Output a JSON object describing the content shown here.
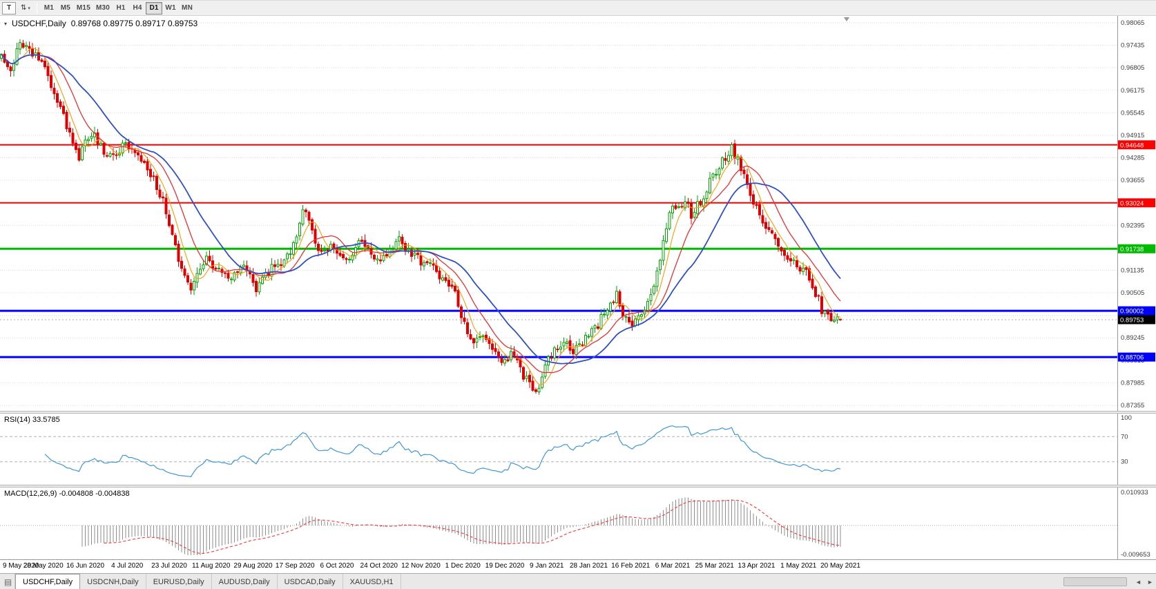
{
  "toolbar": {
    "left_buttons": [
      {
        "label": "T"
      }
    ],
    "icons": {
      "updown_arrows": "⇅",
      "dropdown_caret": "▾",
      "charts_list": "▤",
      "scroll_left": "◄",
      "scroll_right": "►"
    },
    "timeframes": [
      "M1",
      "M5",
      "M15",
      "M30",
      "H1",
      "H4",
      "D1",
      "W1",
      "MN"
    ],
    "active_timeframe": "D1"
  },
  "chart": {
    "collapse_arrow": "▾",
    "symbol_period": "USDCHF,Daily",
    "ohlc_text": "0.89768 0.89775 0.89717 0.89753"
  },
  "chart_data": {
    "type": "candlestick",
    "symbol": "USDCHF",
    "period": "Daily",
    "last_ohlc": {
      "open": 0.89768,
      "high": 0.89775,
      "low": 0.89717,
      "close": 0.89753
    },
    "y_axis": {
      "max": 0.98065,
      "min": 0.87355,
      "ticks": [
        0.98065,
        0.97435,
        0.96805,
        0.96175,
        0.95545,
        0.94915,
        0.94285,
        0.93655,
        0.93025,
        0.92395,
        0.91765,
        0.91135,
        0.90505,
        0.89875,
        0.89245,
        0.88615,
        0.87985,
        0.87355
      ]
    },
    "x_ticks": [
      "9 May 2020",
      "28 May 2020",
      "16 Jun 2020",
      "4 Jul 2020",
      "23 Jul 2020",
      "11 Aug 2020",
      "29 Aug 2020",
      "17 Sep 2020",
      "6 Oct 2020",
      "24 Oct 2020",
      "12 Nov 2020",
      "1 Dec 2020",
      "19 Dec 2020",
      "9 Jan 2021",
      "28 Jan 2021",
      "16 Feb 2021",
      "6 Mar 2021",
      "25 Mar 2021",
      "13 Apr 2021",
      "1 May 2021",
      "20 May 2021"
    ],
    "h_lines": [
      {
        "value": 0.94648,
        "label": "0.94648",
        "color": "#FF0000",
        "width": 2
      },
      {
        "value": 0.93024,
        "label": "0.93024",
        "color": "#FF0000",
        "width": 2
      },
      {
        "value": 0.91738,
        "label": "0.91738",
        "color": "#00BA00",
        "width": 3
      },
      {
        "value": 0.90002,
        "label": "0.90002",
        "color": "#0000FF",
        "width": 3
      },
      {
        "value": 0.88706,
        "label": "0.88706",
        "color": "#0000FF",
        "width": 3
      }
    ],
    "current_price": {
      "value": 0.89753,
      "label": "0.89753"
    },
    "candles_count": 271,
    "close_anchors": [
      [
        0,
        0.971
      ],
      [
        3,
        0.9685
      ],
      [
        6,
        0.9748
      ],
      [
        9,
        0.9722
      ],
      [
        13,
        0.97
      ],
      [
        16,
        0.9638
      ],
      [
        20,
        0.955
      ],
      [
        23,
        0.9462
      ],
      [
        25,
        0.9428
      ],
      [
        27,
        0.9466
      ],
      [
        30,
        0.9492
      ],
      [
        33,
        0.9448
      ],
      [
        36,
        0.9425
      ],
      [
        40,
        0.9468
      ],
      [
        43,
        0.944
      ],
      [
        46,
        0.9412
      ],
      [
        49,
        0.9368
      ],
      [
        52,
        0.9305
      ],
      [
        54,
        0.9245
      ],
      [
        56,
        0.9175
      ],
      [
        58,
        0.9118
      ],
      [
        61,
        0.9062
      ],
      [
        63,
        0.9108
      ],
      [
        66,
        0.9148
      ],
      [
        68,
        0.9122
      ],
      [
        71,
        0.9103
      ],
      [
        74,
        0.9086
      ],
      [
        77,
        0.9128
      ],
      [
        80,
        0.9094
      ],
      [
        82,
        0.9062
      ],
      [
        84,
        0.9088
      ],
      [
        87,
        0.9122
      ],
      [
        90,
        0.9134
      ],
      [
        93,
        0.9162
      ],
      [
        95,
        0.9218
      ],
      [
        97,
        0.9288
      ],
      [
        99,
        0.9252
      ],
      [
        101,
        0.9192
      ],
      [
        103,
        0.916
      ],
      [
        106,
        0.9176
      ],
      [
        108,
        0.9155
      ],
      [
        111,
        0.9146
      ],
      [
        113,
        0.9168
      ],
      [
        116,
        0.9192
      ],
      [
        119,
        0.9152
      ],
      [
        121,
        0.9136
      ],
      [
        124,
        0.9156
      ],
      [
        126,
        0.9182
      ],
      [
        128,
        0.9214
      ],
      [
        130,
        0.9178
      ],
      [
        132,
        0.9154
      ],
      [
        135,
        0.914
      ],
      [
        138,
        0.9124
      ],
      [
        141,
        0.91
      ],
      [
        144,
        0.9078
      ],
      [
        146,
        0.9048
      ],
      [
        148,
        0.8992
      ],
      [
        150,
        0.8936
      ],
      [
        152,
        0.8906
      ],
      [
        155,
        0.8926
      ],
      [
        158,
        0.889
      ],
      [
        160,
        0.8866
      ],
      [
        162,
        0.8852
      ],
      [
        164,
        0.8882
      ],
      [
        166,
        0.8856
      ],
      [
        168,
        0.882
      ],
      [
        170,
        0.8792
      ],
      [
        172,
        0.8768
      ],
      [
        174,
        0.8812
      ],
      [
        176,
        0.8862
      ],
      [
        178,
        0.8896
      ],
      [
        181,
        0.8916
      ],
      [
        184,
        0.8882
      ],
      [
        187,
        0.8912
      ],
      [
        189,
        0.8936
      ],
      [
        192,
        0.8962
      ],
      [
        194,
        0.8992
      ],
      [
        196,
        0.9022
      ],
      [
        198,
        0.9046
      ],
      [
        200,
        0.8996
      ],
      [
        202,
        0.8956
      ],
      [
        205,
        0.8976
      ],
      [
        208,
        0.9032
      ],
      [
        210,
        0.9082
      ],
      [
        212,
        0.9142
      ],
      [
        214,
        0.9226
      ],
      [
        216,
        0.9302
      ],
      [
        218,
        0.9282
      ],
      [
        220,
        0.9312
      ],
      [
        222,
        0.9272
      ],
      [
        224,
        0.9296
      ],
      [
        226,
        0.9322
      ],
      [
        228,
        0.9362
      ],
      [
        230,
        0.9392
      ],
      [
        232,
        0.9422
      ],
      [
        234,
        0.9446
      ],
      [
        235,
        0.9458
      ],
      [
        237,
        0.9422
      ],
      [
        239,
        0.9372
      ],
      [
        241,
        0.9322
      ],
      [
        243,
        0.9282
      ],
      [
        245,
        0.9252
      ],
      [
        247,
        0.9222
      ],
      [
        249,
        0.92
      ],
      [
        251,
        0.9176
      ],
      [
        253,
        0.9156
      ],
      [
        255,
        0.914
      ],
      [
        257,
        0.912
      ],
      [
        259,
        0.9104
      ],
      [
        261,
        0.9076
      ],
      [
        263,
        0.903
      ],
      [
        264,
        0.9002
      ],
      [
        266,
        0.8992
      ],
      [
        268,
        0.8976
      ],
      [
        270,
        0.89753
      ]
    ],
    "colors": {
      "up": "#00A400",
      "down": "#E00000",
      "ma_fast": "#FF9900",
      "ma_mid": "#E83030",
      "ma_slow": "#2E4FC8",
      "rsi_line": "#3E97D4",
      "macd_hist": "#8C8C8C",
      "macd_signal": "#FF3030",
      "grid": "#DBDBDB",
      "axis_text": "#3C3C3C"
    },
    "moving_averages": [
      {
        "period": 6,
        "colorKey": "ma_fast",
        "width": 1.1
      },
      {
        "period": 13,
        "colorKey": "ma_mid",
        "width": 1.3
      },
      {
        "period": 24,
        "colorKey": "ma_slow",
        "width": 1.8
      }
    ],
    "indicators": [
      {
        "name": "RSI",
        "label": "RSI(14) 33.5785",
        "value": 33.5785,
        "period": 14,
        "levels": [
          70,
          30
        ],
        "axis_labels": [
          {
            "text": "100",
            "value": 100
          },
          {
            "text": "70",
            "value": 70
          },
          {
            "text": "30",
            "value": 30
          }
        ],
        "range": [
          0,
          100
        ]
      },
      {
        "name": "MACD",
        "label": "MACD(12,26,9) -0.004808 -0.004838",
        "macd": -0.004808,
        "signal": -0.004838,
        "axis_max": 0.010933,
        "axis_min": -0.009653,
        "axis_labels": [
          {
            "text": "0.010933",
            "pos": "top"
          },
          {
            "text": "-0.009653",
            "pos": "bottom"
          }
        ]
      }
    ]
  },
  "tabs": {
    "items": [
      {
        "label": "USDCHF,Daily",
        "active": true
      },
      {
        "label": "USDCNH,Daily",
        "active": false
      },
      {
        "label": "EURUSD,Daily",
        "active": false
      },
      {
        "label": "AUDUSD,Daily",
        "active": false
      },
      {
        "label": "USDCAD,Daily",
        "active": false
      },
      {
        "label": "XAUUSD,H1",
        "active": false
      }
    ]
  }
}
